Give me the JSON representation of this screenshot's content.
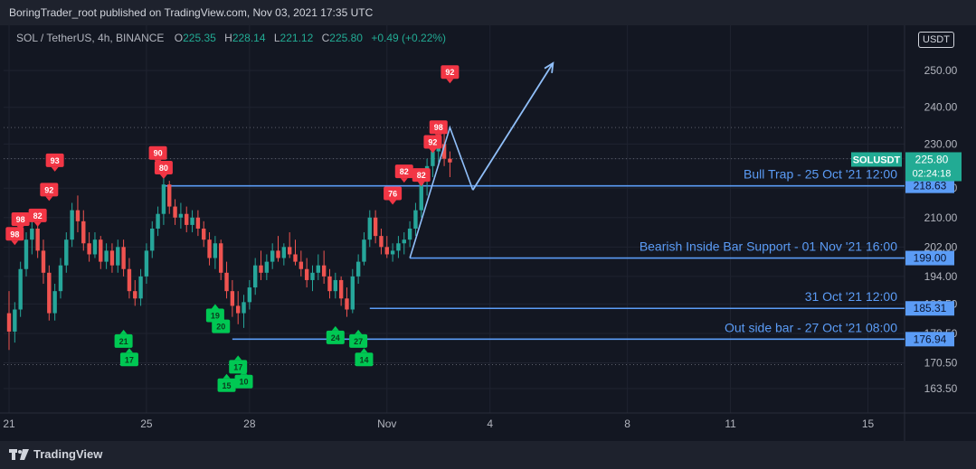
{
  "header": {
    "published": "BoringTrader_root published on TradingView.com, Nov 03, 2021 17:35 UTC"
  },
  "legend": {
    "symbol": "SOL / TetherUS, 4h, BINANCE",
    "o_label": "O",
    "o": "225.35",
    "h_label": "H",
    "h": "228.14",
    "l_label": "L",
    "l": "221.12",
    "c_label": "C",
    "c": "225.80",
    "change": "+0.49 (+0.22%)"
  },
  "currency_label": "USDT",
  "footer": {
    "brand": "TradingView"
  },
  "colors": {
    "background": "#131722",
    "up": "#26a69a",
    "down": "#ef5350",
    "level": "#5b9cf6",
    "price_badge": "#22ab94",
    "buy_signal": "#00c853",
    "sell_signal": "#f23645"
  },
  "chart_data": {
    "type": "candlestick",
    "timeframe": "4h",
    "y_axis": {
      "ticks": [
        163.5,
        170.5,
        178.5,
        186.5,
        194.0,
        202.0,
        210.0,
        218.0,
        226.0,
        230.0,
        240.0,
        250.0
      ],
      "tick_labels": [
        "163.50",
        "170.50",
        "178.50",
        "186.50",
        "194.00",
        "202.00",
        "210.00",
        "218.00",
        "226.00",
        "230.00",
        "240.00",
        "250.00"
      ],
      "range": [
        158,
        260
      ]
    },
    "x_axis": {
      "tick_labels": [
        "21",
        "25",
        "28",
        "Nov",
        "4",
        "8",
        "11",
        "15"
      ],
      "tick_index": [
        0,
        24,
        42,
        66,
        84,
        108,
        126,
        150
      ]
    },
    "last_price": {
      "symbol": "SOLUSDT",
      "value": 225.8,
      "label": "225.80",
      "countdown": "02:24:18"
    },
    "levels": [
      {
        "label": "Bull Trap - 25 Oct '21 12:00",
        "value": 218.63,
        "value_label": "218.63",
        "start_index": 27
      },
      {
        "label": "Bearish Inside Bar Support - 01 Nov '21 16:00",
        "value": 199.0,
        "value_label": "199.00",
        "start_index": 70
      },
      {
        "label": "31 Oct '21 12:00",
        "value": 185.31,
        "value_label": "185.31",
        "start_index": 63
      },
      {
        "label": "Out side bar - 27 Oct '21 08:00",
        "value": 176.94,
        "value_label": "176.94",
        "start_index": 39
      }
    ],
    "dotted_levels": [
      234.5,
      226.0,
      170.0
    ],
    "candles": [
      [
        184,
        190,
        174,
        179
      ],
      [
        179,
        187,
        176,
        185
      ],
      [
        185,
        198,
        183,
        196
      ],
      [
        196,
        206,
        194,
        204
      ],
      [
        204,
        210,
        200,
        207
      ],
      [
        207,
        208,
        199,
        201
      ],
      [
        201,
        204,
        192,
        195
      ],
      [
        195,
        197,
        182,
        184
      ],
      [
        184,
        192,
        182,
        190
      ],
      [
        190,
        199,
        188,
        197
      ],
      [
        197,
        206,
        195,
        204
      ],
      [
        204,
        214,
        202,
        212
      ],
      [
        212,
        216,
        206,
        209
      ],
      [
        209,
        212,
        201,
        203
      ],
      [
        203,
        206,
        198,
        200
      ],
      [
        200,
        206,
        199,
        204
      ],
      [
        204,
        205,
        196,
        198
      ],
      [
        198,
        203,
        196,
        201
      ],
      [
        201,
        203,
        195,
        197
      ],
      [
        197,
        204,
        195,
        202
      ],
      [
        202,
        204,
        194,
        196
      ],
      [
        196,
        199,
        188,
        190
      ],
      [
        190,
        193,
        186,
        188
      ],
      [
        188,
        196,
        186,
        194
      ],
      [
        194,
        203,
        192,
        201
      ],
      [
        201,
        209,
        199,
        207
      ],
      [
        207,
        213,
        205,
        211
      ],
      [
        211,
        221,
        208,
        219
      ],
      [
        219,
        220,
        211,
        213
      ],
      [
        213,
        215,
        208,
        210
      ],
      [
        210,
        214,
        207,
        211
      ],
      [
        211,
        213,
        206,
        208
      ],
      [
        208,
        212,
        206,
        210
      ],
      [
        210,
        212,
        205,
        207
      ],
      [
        207,
        209,
        202,
        204
      ],
      [
        204,
        206,
        197,
        199
      ],
      [
        199,
        205,
        196,
        203
      ],
      [
        203,
        204,
        193,
        195
      ],
      [
        195,
        198,
        188,
        190
      ],
      [
        190,
        193,
        183,
        186
      ],
      [
        186,
        190,
        181,
        184
      ],
      [
        184,
        189,
        180,
        187
      ],
      [
        187,
        193,
        185,
        191
      ],
      [
        191,
        199,
        189,
        197
      ],
      [
        197,
        201,
        193,
        195
      ],
      [
        195,
        200,
        193,
        198
      ],
      [
        198,
        203,
        196,
        201
      ],
      [
        201,
        205,
        198,
        199
      ],
      [
        199,
        203,
        197,
        202
      ],
      [
        202,
        206,
        199,
        200
      ],
      [
        200,
        204,
        197,
        198
      ],
      [
        198,
        201,
        194,
        196
      ],
      [
        196,
        199,
        191,
        193
      ],
      [
        193,
        197,
        190,
        195
      ],
      [
        195,
        200,
        193,
        197
      ],
      [
        197,
        201,
        192,
        194
      ],
      [
        194,
        196,
        188,
        190
      ],
      [
        190,
        195,
        188,
        193
      ],
      [
        193,
        194,
        186,
        188
      ],
      [
        188,
        191,
        183,
        185
      ],
      [
        185,
        196,
        184,
        194
      ],
      [
        194,
        200,
        192,
        198
      ],
      [
        198,
        206,
        197,
        204
      ],
      [
        204,
        212,
        202,
        210
      ],
      [
        210,
        212,
        203,
        205
      ],
      [
        205,
        207,
        200,
        202
      ],
      [
        202,
        205,
        199,
        200
      ],
      [
        200,
        203,
        198,
        201
      ],
      [
        201,
        205,
        199,
        203
      ],
      [
        203,
        206,
        200,
        204
      ],
      [
        204,
        209,
        202,
        207
      ],
      [
        207,
        214,
        205,
        212
      ],
      [
        212,
        222,
        210,
        220
      ],
      [
        220,
        226,
        216,
        224
      ],
      [
        224,
        230,
        221,
        228
      ],
      [
        228,
        233,
        225,
        230
      ],
      [
        230,
        234,
        224,
        226
      ],
      [
        226,
        228,
        221,
        225
      ]
    ],
    "signals": [
      {
        "type": "sell",
        "label": "98",
        "index": 1,
        "price": 203
      },
      {
        "type": "sell",
        "label": "98",
        "index": 2,
        "price": 207
      },
      {
        "type": "sell",
        "label": "82",
        "index": 5,
        "price": 208
      },
      {
        "type": "sell",
        "label": "93",
        "index": 8,
        "price": 223
      },
      {
        "type": "sell",
        "label": "92",
        "index": 7,
        "price": 215
      },
      {
        "type": "sell",
        "label": "90",
        "index": 26,
        "price": 225
      },
      {
        "type": "sell",
        "label": "80",
        "index": 27,
        "price": 221
      },
      {
        "type": "sell",
        "label": "76",
        "index": 67,
        "price": 214
      },
      {
        "type": "sell",
        "label": "82",
        "index": 69,
        "price": 220
      },
      {
        "type": "sell",
        "label": "82",
        "index": 72,
        "price": 219
      },
      {
        "type": "sell",
        "label": "92",
        "index": 74,
        "price": 228
      },
      {
        "type": "sell",
        "label": "98",
        "index": 75,
        "price": 232
      },
      {
        "type": "sell",
        "label": "92",
        "index": 77,
        "price": 247
      },
      {
        "type": "buy",
        "label": "21",
        "index": 20,
        "price": 179
      },
      {
        "type": "buy",
        "label": "17",
        "index": 21,
        "price": 174
      },
      {
        "type": "buy",
        "label": "19",
        "index": 36,
        "price": 186
      },
      {
        "type": "buy",
        "label": "20",
        "index": 37,
        "price": 183
      },
      {
        "type": "buy",
        "label": "15",
        "index": 38,
        "price": 167
      },
      {
        "type": "buy",
        "label": "17",
        "index": 40,
        "price": 172
      },
      {
        "type": "buy",
        "label": "10",
        "index": 41,
        "price": 168
      },
      {
        "type": "buy",
        "label": "24",
        "index": 57,
        "price": 180
      },
      {
        "type": "buy",
        "label": "27",
        "index": 61,
        "price": 179
      },
      {
        "type": "buy",
        "label": "14",
        "index": 62,
        "price": 174
      }
    ],
    "drawings": {
      "triangle": [
        [
          70,
          199.0
        ],
        [
          77,
          234.5
        ],
        [
          81,
          217.5
        ]
      ],
      "arrow": [
        [
          81,
          217.5
        ],
        [
          95,
          252.0
        ]
      ]
    }
  }
}
